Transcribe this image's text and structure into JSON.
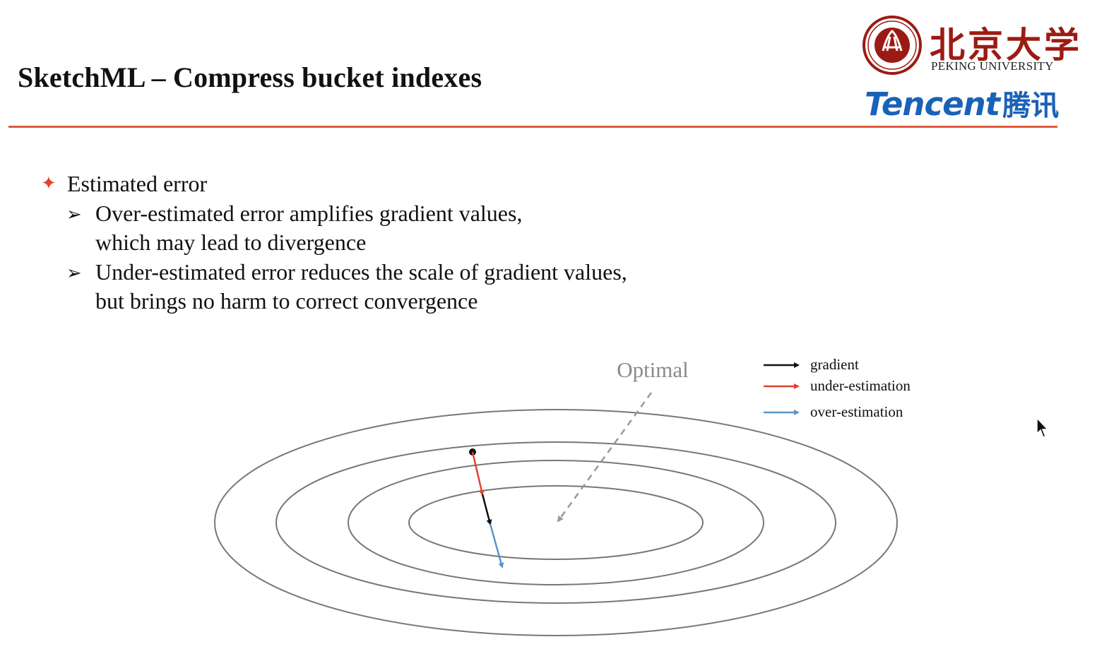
{
  "title": "SketchML – Compress bucket indexes",
  "logos": {
    "pku_name_cn": "北京大学",
    "pku_name_en": "PEKING UNIVERSITY",
    "pku_seal_icon": "peking-university-seal-icon",
    "tencent_en": "Tencent",
    "tencent_cn": "腾讯"
  },
  "bullets": {
    "main": "Estimated error",
    "sub": [
      {
        "lines": [
          "Over-estimated error amplifies gradient values,",
          "which may lead to divergence"
        ]
      },
      {
        "lines": [
          "Under-estimated error reduces the scale of gradient values,",
          "but brings no harm to correct convergence"
        ]
      }
    ]
  },
  "diagram": {
    "optimal_label": "Optimal",
    "legend": [
      {
        "label": "gradient",
        "color": "#111111"
      },
      {
        "label": "under-estimation",
        "color": "#e0432f"
      },
      {
        "label": "over-estimation",
        "color": "#5b94c9"
      }
    ]
  },
  "colors": {
    "accent_rule": "#e05a3f",
    "contour": "#777777",
    "optimal_pointer": "#999999"
  }
}
